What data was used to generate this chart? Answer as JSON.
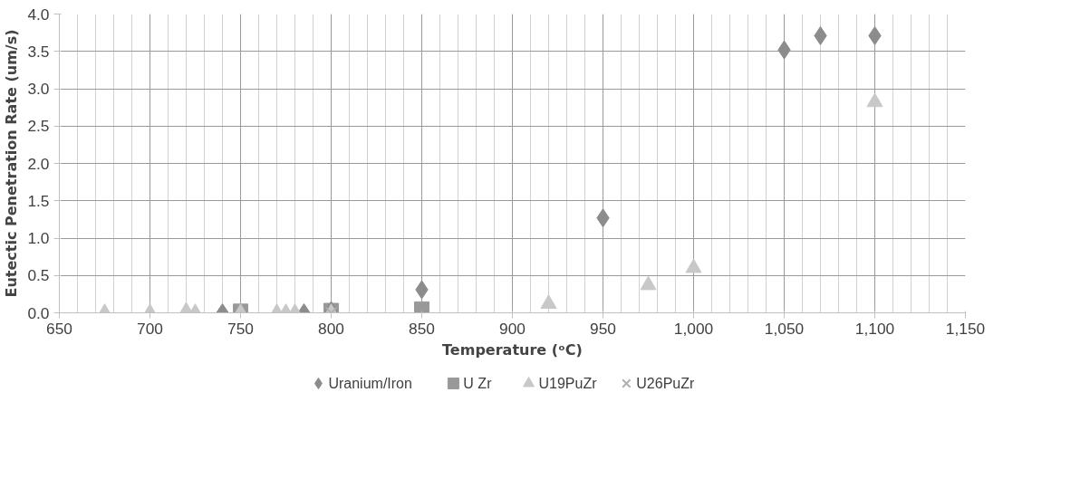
{
  "chart_data": {
    "type": "scatter",
    "xlabel": "Temperature (ᵒC)",
    "ylabel": "Eutectic Penetration Rate (um/s)",
    "xlim": [
      650,
      1150
    ],
    "xticks": [
      650,
      700,
      750,
      800,
      850,
      900,
      950,
      {
        "value": 1000,
        "label": "1,000"
      },
      {
        "value": 1050,
        "label": "1,050"
      },
      {
        "value": 1100,
        "label": "1,100"
      },
      {
        "value": 1150,
        "label": "1,150"
      }
    ],
    "ylim": [
      0,
      4
    ],
    "yticks": [
      {
        "value": 0,
        "label": "0.0"
      },
      {
        "value": 0.5,
        "label": "0.5"
      },
      {
        "value": 1,
        "label": "1.0"
      },
      {
        "value": 1.5,
        "label": "1.5"
      },
      {
        "value": 2,
        "label": "2.0"
      },
      {
        "value": 2.5,
        "label": "2.5"
      },
      {
        "value": 3,
        "label": "3.0"
      },
      {
        "value": 3.5,
        "label": "3.5"
      },
      {
        "value": 4,
        "label": "4.0"
      }
    ],
    "grid": true,
    "legend": "bottom",
    "series": [
      {
        "name": "Uranium/Iron",
        "color": "#8c8c8c",
        "marker": "diamond",
        "x": [
          740,
          785,
          800,
          850,
          950,
          1050,
          1070,
          1100
        ],
        "values": [
          0,
          0,
          0.03,
          0.31,
          1.27,
          3.52,
          3.71,
          3.71
        ]
      },
      {
        "name": "U Zr",
        "color": "#999999",
        "marker": "square",
        "x": [
          750,
          800,
          850
        ],
        "values": [
          0.02,
          0.03,
          0.05
        ]
      },
      {
        "name": "U19PuZr",
        "color": "#c8c8c8",
        "marker": "triangle",
        "x": [
          675,
          700,
          720,
          725,
          750,
          770,
          775,
          780,
          800,
          920,
          975,
          1000,
          1100
        ],
        "values": [
          0,
          0,
          0.02,
          0,
          0,
          0,
          0,
          0,
          0,
          0.12,
          0.37,
          0.6,
          2.82
        ]
      },
      {
        "name": "U26PuZr",
        "color": "#b0b0b0",
        "marker": "cross",
        "x": [
          800
        ],
        "values": [
          0
        ]
      }
    ]
  }
}
